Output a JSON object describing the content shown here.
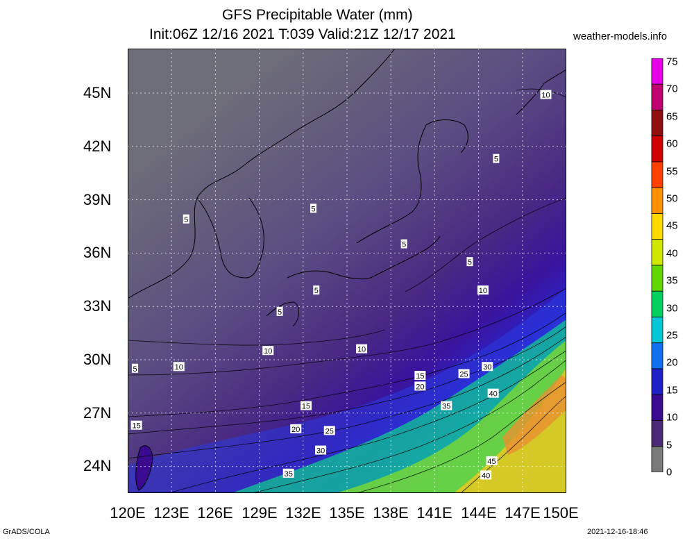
{
  "title": {
    "line1": "GFS Precipitable Water (mm)",
    "line2": "Init:06Z 12/16 2021 T:039 Valid:21Z 12/17 2021"
  },
  "source": "weather-models.info",
  "footer": {
    "left": "GrADS/COLA",
    "right": "2021-12-16-18:46"
  },
  "map": {
    "lat_labels": [
      "45N",
      "42N",
      "39N",
      "36N",
      "33N",
      "30N",
      "27N",
      "24N"
    ],
    "lon_labels": [
      "120E",
      "123E",
      "126E",
      "129E",
      "132E",
      "135E",
      "138E",
      "141E",
      "144E",
      "147E",
      "150E"
    ],
    "lon_range": [
      120,
      150
    ],
    "lat_range": [
      22.5,
      47.5
    ],
    "contour_labels": [
      {
        "text": "10",
        "lon": 148.6,
        "lat": 44.9
      },
      {
        "text": "5",
        "lon": 145.2,
        "lat": 41.3
      },
      {
        "text": "5",
        "lon": 124.0,
        "lat": 37.9
      },
      {
        "text": "5",
        "lon": 132.7,
        "lat": 38.5
      },
      {
        "text": "5",
        "lon": 138.9,
        "lat": 36.5
      },
      {
        "text": "5",
        "lon": 143.4,
        "lat": 35.5
      },
      {
        "text": "10",
        "lon": 144.3,
        "lat": 33.9
      },
      {
        "text": "5",
        "lon": 132.9,
        "lat": 33.9
      },
      {
        "text": "5",
        "lon": 130.4,
        "lat": 32.7
      },
      {
        "text": "10",
        "lon": 129.6,
        "lat": 30.5
      },
      {
        "text": "10",
        "lon": 136.0,
        "lat": 30.6
      },
      {
        "text": "10",
        "lon": 123.5,
        "lat": 29.6
      },
      {
        "text": "5",
        "lon": 120.5,
        "lat": 29.5
      },
      {
        "text": "15",
        "lon": 140.0,
        "lat": 29.1
      },
      {
        "text": "20",
        "lon": 140.0,
        "lat": 28.5
      },
      {
        "text": "25",
        "lon": 143.0,
        "lat": 29.2
      },
      {
        "text": "30",
        "lon": 144.6,
        "lat": 29.6
      },
      {
        "text": "40",
        "lon": 145.0,
        "lat": 28.1
      },
      {
        "text": "15",
        "lon": 132.2,
        "lat": 27.4
      },
      {
        "text": "35",
        "lon": 141.8,
        "lat": 27.4
      },
      {
        "text": "15",
        "lon": 120.6,
        "lat": 26.3
      },
      {
        "text": "20",
        "lon": 131.5,
        "lat": 26.1
      },
      {
        "text": "25",
        "lon": 133.8,
        "lat": 26.0
      },
      {
        "text": "30",
        "lon": 133.2,
        "lat": 24.9
      },
      {
        "text": "45",
        "lon": 144.9,
        "lat": 24.3
      },
      {
        "text": "35",
        "lon": 131.0,
        "lat": 23.6
      },
      {
        "text": "40",
        "lon": 144.5,
        "lat": 23.5
      }
    ]
  },
  "colorbar": {
    "labels": [
      "75",
      "70",
      "65",
      "60",
      "55",
      "50",
      "45",
      "40",
      "35",
      "30",
      "25",
      "20",
      "15",
      "10",
      "5",
      "0"
    ],
    "colors": [
      "#e800e8",
      "#c00070",
      "#901010",
      "#d00000",
      "#ff4000",
      "#ff9000",
      "#ffd800",
      "#d0e800",
      "#60d800",
      "#00d060",
      "#00c8d8",
      "#1070f0",
      "#2020c8",
      "#3a0a90",
      "#4a2a78",
      "#7a7a7a"
    ]
  }
}
